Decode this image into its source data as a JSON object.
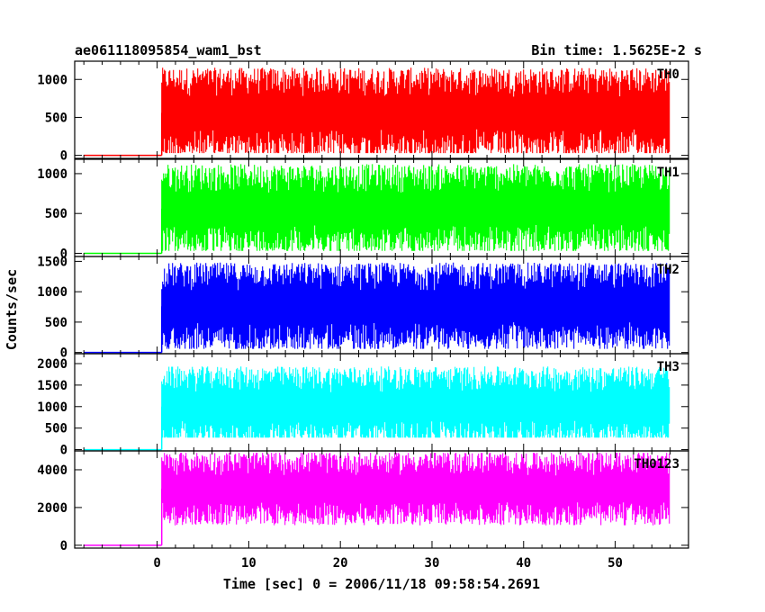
{
  "header": {
    "title": "ae061118095854_wam1_bst",
    "bin_time": "Bin time: 1.5625E-2 s"
  },
  "chart_data": {
    "type": "line",
    "xlabel": "Time [sec] 0 = 2006/11/18 09:58:54.2691",
    "ylabel": "Counts/sec",
    "xlim": [
      -9,
      58
    ],
    "x_ticks": [
      0,
      10,
      20,
      30,
      40,
      50
    ],
    "shared_x": true,
    "panels": [
      {
        "name": "TH0",
        "color": "#ff0000",
        "ylim": [
          -40,
          1240
        ],
        "yticks": [
          0,
          500,
          1000
        ],
        "pre_level": 0,
        "burst_start": 0.5,
        "burst_end": 56.0,
        "burst_low": 30,
        "burst_high": 1220,
        "burst_center": 560
      },
      {
        "name": "TH1",
        "color": "#00ff00",
        "ylim": [
          -40,
          1180
        ],
        "yticks": [
          0,
          500,
          1000
        ],
        "pre_level": 0,
        "burst_start": 0.5,
        "burst_end": 56.0,
        "burst_low": 30,
        "burst_high": 1150,
        "burst_center": 560
      },
      {
        "name": "TH2",
        "color": "#0000ff",
        "ylim": [
          -20,
          1580
        ],
        "yticks": [
          0,
          500,
          1000,
          1500
        ],
        "pre_level": 0,
        "burst_start": 0.5,
        "burst_end": 56.0,
        "burst_low": 60,
        "burst_high": 1500,
        "burst_center": 760
      },
      {
        "name": "TH3",
        "color": "#00ffff",
        "ylim": [
          -30,
          2230
        ],
        "yticks": [
          0,
          500,
          1000,
          1500,
          2000
        ],
        "pre_level": 0,
        "burst_start": 0.5,
        "burst_end": 56.0,
        "burst_low": 280,
        "burst_high": 2150,
        "burst_center": 1000
      },
      {
        "name": "TH0123",
        "color": "#ff00ff",
        "ylim": [
          -150,
          5000
        ],
        "yticks": [
          0,
          2000,
          4000
        ],
        "pre_level": 0,
        "burst_start": 0.5,
        "burst_end": 56.0,
        "burst_low": 1000,
        "burst_high": 4900,
        "burst_center": 3000
      }
    ]
  }
}
